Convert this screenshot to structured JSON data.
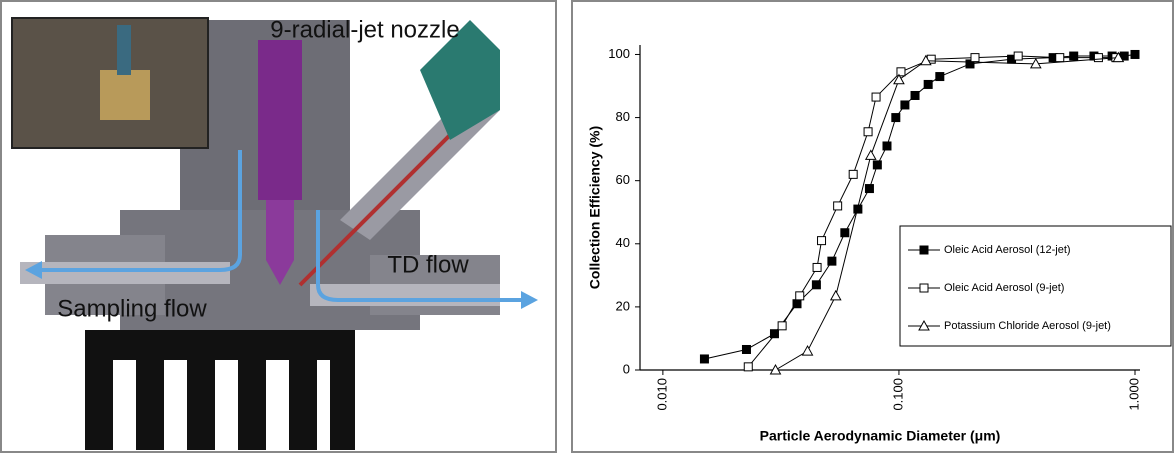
{
  "diagram": {
    "labels": [
      "9-radial-jet nozzle",
      "TD flow",
      "Sampling flow"
    ]
  },
  "chart_data": {
    "type": "line",
    "y_label": "Collection Efficiency (%)",
    "x_label": "Particle Aerodynamic Diameter (μm)",
    "log_x": true,
    "xlim": [
      0.008,
      1.05
    ],
    "xticks": [
      {
        "value": 0.01,
        "label": "0.010"
      },
      {
        "value": 0.1,
        "label": "0.100"
      },
      {
        "value": 1,
        "label": "1.000"
      }
    ],
    "ylim": [
      0,
      103
    ],
    "yticks": [
      0,
      20,
      40,
      60,
      80,
      100
    ],
    "legend": "right",
    "series": [
      {
        "name": "Oleic Acid Aerosol (12-jet)",
        "color": "#000000",
        "marker": "filled-square",
        "x": [
          0.015,
          0.0226,
          0.0297,
          0.037,
          0.0447,
          0.052,
          0.059,
          0.067,
          0.075,
          0.081,
          0.089,
          0.097,
          0.106,
          0.117,
          0.133,
          0.149,
          0.2,
          0.3,
          0.45,
          0.55,
          0.67,
          0.8,
          0.9,
          1.0
        ],
        "values": [
          3.5,
          6.5,
          11.5,
          21,
          27,
          34.5,
          43.5,
          51,
          57.5,
          65,
          71,
          80,
          84,
          87,
          90.5,
          93,
          97,
          98.5,
          99,
          99.5,
          99.5,
          99.5,
          99.5,
          100
        ]
      },
      {
        "name": "Oleic Acid Aerosol (9-jet)",
        "color": "#000000",
        "marker": "open-square",
        "x": [
          0.023,
          0.032,
          0.038,
          0.045,
          0.047,
          0.055,
          0.064,
          0.074,
          0.08,
          0.102,
          0.137,
          0.21,
          0.32,
          0.48,
          0.7,
          0.83
        ],
        "values": [
          1,
          14,
          23.5,
          32.5,
          41,
          52,
          62,
          75.5,
          86.5,
          94.5,
          98.5,
          99,
          99.5,
          99,
          99,
          99
        ]
      },
      {
        "name": "Potassium Chloride Aerosol (9-jet)",
        "color": "#000000",
        "marker": "open-triangle",
        "x": [
          0.03,
          0.041,
          0.054,
          0.076,
          0.1,
          0.13,
          0.38,
          0.85
        ],
        "values": [
          0,
          6,
          23.5,
          68,
          92,
          98,
          97,
          99
        ]
      }
    ]
  }
}
